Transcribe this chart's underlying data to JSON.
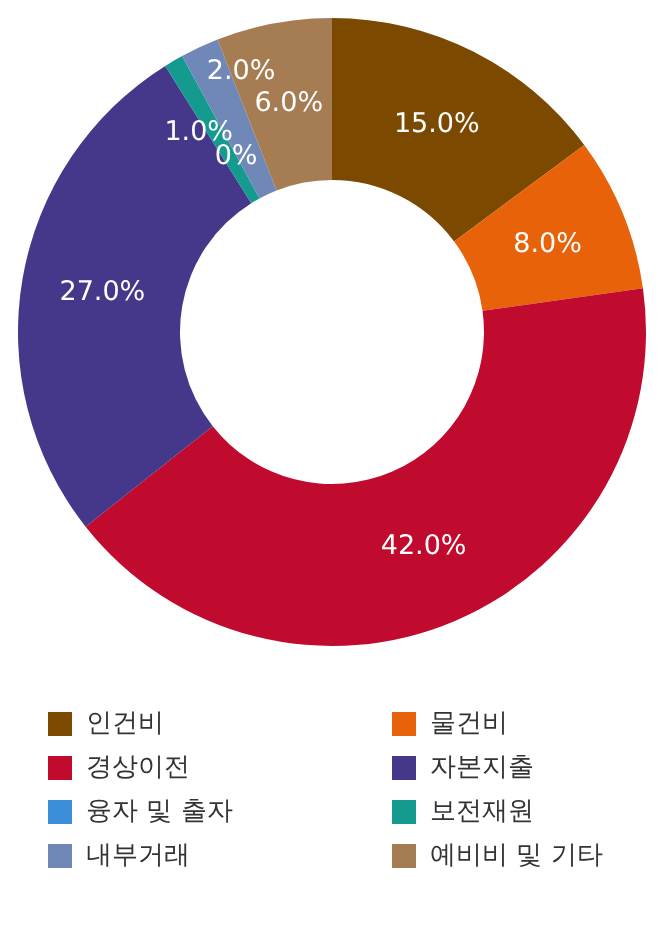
{
  "chart_data": {
    "type": "donut",
    "categories": [
      "인건비",
      "물건비",
      "경상이전",
      "자본지출",
      "융자 및 출자",
      "보전재원",
      "내부거래",
      "예비비 및 기타"
    ],
    "values": [
      15,
      8,
      42,
      27,
      0,
      1,
      2,
      6
    ],
    "colors": [
      "#7b4a00",
      "#e8620a",
      "#c00a2e",
      "#45388a",
      "#3a8fd8",
      "#149a8e",
      "#7088b8",
      "#a67c52"
    ],
    "value_labels": [
      "15.0%",
      "8.0%",
      "42.0%",
      "27.0%",
      "0%",
      "1.0%",
      "2.0%",
      "6.0%"
    ],
    "legend": "bottom"
  }
}
